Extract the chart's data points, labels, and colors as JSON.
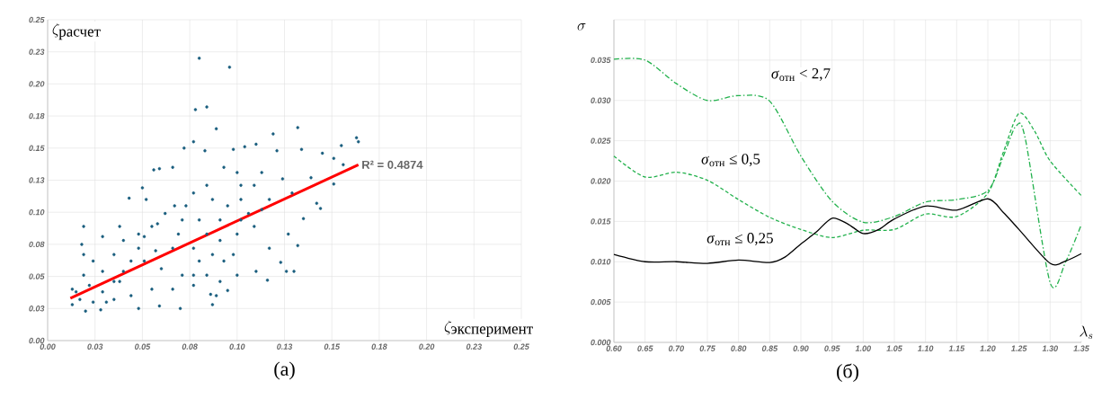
{
  "chart_data": [
    {
      "type": "scatter",
      "xlabel": "\\zeta_{\\mbox{эксперимент}}",
      "ylabel": "\\zeta_{\\mbox{расчет}}",
      "grid": true,
      "xlim": [
        0,
        0.25
      ],
      "ylim": [
        0,
        0.25
      ],
      "xticks": [
        {
          "value": 0,
          "label": "0.00"
        },
        {
          "value": 0.025,
          "label": "0.03"
        },
        {
          "value": 0.05,
          "label": "0.05"
        },
        {
          "value": 0.075,
          "label": "0.08"
        },
        {
          "value": 0.1,
          "label": "0.10"
        },
        {
          "value": 0.125,
          "label": "0.13"
        },
        {
          "value": 0.15,
          "label": "0.15"
        },
        {
          "value": 0.175,
          "label": "0.18"
        },
        {
          "value": 0.2,
          "label": "0.20"
        },
        {
          "value": 0.225,
          "label": "0.23"
        },
        {
          "value": 0.25,
          "label": "0.25"
        }
      ],
      "yticks": [
        {
          "value": 0,
          "label": "0.00"
        },
        {
          "value": 0.025,
          "label": "0.03"
        },
        {
          "value": 0.05,
          "label": "0.05"
        },
        {
          "value": 0.075,
          "label": "0.08"
        },
        {
          "value": 0.1,
          "label": "0.10"
        },
        {
          "value": 0.125,
          "label": "0.13"
        },
        {
          "value": 0.15,
          "label": "0.15"
        },
        {
          "value": 0.175,
          "label": "0.18"
        },
        {
          "value": 0.2,
          "label": "0.20"
        },
        {
          "value": 0.225,
          "label": "0.23"
        },
        {
          "value": 0.25,
          "label": "0.25"
        }
      ],
      "series": [
        {
          "type": "scatter",
          "marker": "circle",
          "color": "#1a5e7e",
          "x": [
            0.08,
            0.096,
            0.084,
            0.078,
            0.089,
            0.132,
            0.119,
            0.077,
            0.072,
            0.083,
            0.098,
            0.104,
            0.11,
            0.121,
            0.134,
            0.145,
            0.155,
            0.163,
            0.164,
            0.151,
            0.156,
            0.151,
            0.139,
            0.142,
            0.144,
            0.135,
            0.132,
            0.127,
            0.123,
            0.126,
            0.13,
            0.116,
            0.117,
            0.11,
            0.093,
            0.1,
            0.113,
            0.124,
            0.129,
            0.117,
            0.056,
            0.059,
            0.066,
            0.05,
            0.052,
            0.043,
            0.038,
            0.029,
            0.019,
            0.018,
            0.019,
            0.024,
            0.013,
            0.013,
            0.02,
            0.028,
            0.048,
            0.059,
            0.07,
            0.087,
            0.089,
            0.095,
            0.1,
            0.077,
            0.086,
            0.022,
            0.029,
            0.035,
            0.04,
            0.044,
            0.048,
            0.051,
            0.048,
            0.055,
            0.057,
            0.06,
            0.066,
            0.069,
            0.071,
            0.073,
            0.08,
            0.084,
            0.077,
            0.08,
            0.071,
            0.066,
            0.055,
            0.044,
            0.035,
            0.024,
            0.017,
            0.04,
            0.035,
            0.029,
            0.091,
            0.095,
            0.102,
            0.106,
            0.091,
            0.1,
            0.087,
            0.093,
            0.102,
            0.109,
            0.113,
            0.109,
            0.102,
            0.084,
            0.087,
            0.077,
            0.067,
            0.062,
            0.058,
            0.051,
            0.038,
            0.031,
            0.098,
            0.077,
            0.084,
            0.091,
            0.019,
            0.015
          ],
          "values": [
            0.22,
            0.213,
            0.182,
            0.18,
            0.165,
            0.166,
            0.161,
            0.155,
            0.15,
            0.148,
            0.149,
            0.151,
            0.153,
            0.148,
            0.149,
            0.146,
            0.152,
            0.158,
            0.155,
            0.142,
            0.137,
            0.122,
            0.127,
            0.107,
            0.103,
            0.095,
            0.074,
            0.083,
            0.061,
            0.054,
            0.054,
            0.047,
            0.072,
            0.054,
            0.135,
            0.131,
            0.131,
            0.126,
            0.115,
            0.11,
            0.133,
            0.134,
            0.135,
            0.119,
            0.11,
            0.111,
            0.089,
            0.081,
            0.089,
            0.075,
            0.067,
            0.062,
            0.04,
            0.028,
            0.023,
            0.024,
            0.025,
            0.027,
            0.025,
            0.028,
            0.035,
            0.039,
            0.051,
            0.043,
            0.036,
            0.043,
            0.038,
            0.046,
            0.054,
            0.062,
            0.072,
            0.081,
            0.083,
            0.089,
            0.07,
            0.056,
            0.072,
            0.083,
            0.094,
            0.105,
            0.094,
            0.083,
            0.072,
            0.062,
            0.051,
            0.04,
            0.04,
            0.035,
            0.032,
            0.03,
            0.032,
            0.078,
            0.067,
            0.054,
            0.094,
            0.105,
            0.11,
            0.099,
            0.078,
            0.083,
            0.067,
            0.062,
            0.094,
            0.089,
            0.102,
            0.121,
            0.121,
            0.121,
            0.11,
            0.115,
            0.105,
            0.099,
            0.091,
            0.062,
            0.046,
            0.03,
            0.067,
            0.051,
            0.051,
            0.046,
            0.051,
            0.038
          ]
        },
        {
          "type": "line",
          "color": "#ff0000",
          "x": [
            0.012,
            0.164
          ],
          "values": [
            0.033,
            0.137
          ]
        }
      ],
      "annotations": [
        {
          "text": "R² = 0.4874",
          "x": 0.164,
          "y": 0.137
        },
        "(a)"
      ]
    },
    {
      "type": "line",
      "xlabel": "\\lambda_{s}",
      "ylabel": "\\sigma",
      "grid": true,
      "xlim": [
        0.6,
        1.35
      ],
      "ylim": [
        0,
        0.04
      ],
      "xticks": [
        {
          "value": 0.6,
          "label": "0.60"
        },
        0.65,
        {
          "value": 0.7,
          "label": "0.70"
        },
        0.75,
        {
          "value": 0.8,
          "label": "0.80"
        },
        0.85,
        {
          "value": 0.9,
          "label": "0.90"
        },
        0.95,
        {
          "value": 1.0,
          "label": "1.00"
        },
        1.05,
        {
          "value": 1.1,
          "label": "1.10"
        },
        1.15,
        {
          "value": 1.2,
          "label": "1.20"
        },
        1.25,
        {
          "value": 1.3,
          "label": "1.30"
        },
        1.35
      ],
      "yticks": [
        {
          "value": 0,
          "label": "0.000"
        },
        0.005,
        {
          "value": 0.01,
          "label": "0.010"
        },
        0.015,
        {
          "value": 0.02,
          "label": "0.020"
        },
        0.025,
        {
          "value": 0.03,
          "label": "0.030"
        },
        0.035,
        {
          "value": 0.04,
          "label": null
        }
      ],
      "series": [
        {
          "name": "*σ*$_{отн}$ < 2,7",
          "color": "#22b14c",
          "line_style": "dashdot",
          "x": [
            0.6,
            0.65,
            0.7,
            0.75,
            0.8,
            0.85,
            0.9,
            0.95,
            1.0,
            1.05,
            1.1,
            1.15,
            1.2,
            1.225,
            1.245,
            1.26,
            1.3,
            1.325,
            1.35
          ],
          "values": [
            0.0351,
            0.035,
            0.0321,
            0.03,
            0.0306,
            0.0299,
            0.0231,
            0.0175,
            0.0149,
            0.0156,
            0.0174,
            0.0177,
            0.0188,
            0.0231,
            0.0268,
            0.0253,
            0.0074,
            0.01,
            0.0146
          ]
        },
        {
          "name": "*σ*$_{отн}$ ≤ 0,5",
          "color": "#22b14c",
          "line_style": "dashed",
          "x": [
            0.6,
            0.65,
            0.7,
            0.75,
            0.8,
            0.85,
            0.9,
            0.95,
            1.0,
            1.05,
            1.1,
            1.15,
            1.2,
            1.225,
            1.25,
            1.275,
            1.3,
            1.35
          ],
          "values": [
            0.0231,
            0.0205,
            0.0211,
            0.0201,
            0.0177,
            0.0155,
            0.014,
            0.013,
            0.0139,
            0.014,
            0.0159,
            0.0156,
            0.0185,
            0.0236,
            0.0284,
            0.0262,
            0.0225,
            0.0182
          ]
        },
        {
          "name": "*σ*$_{отн}$ ≤ 0,25",
          "color": "#000000",
          "line_style": "solid",
          "x": [
            0.6,
            0.65,
            0.7,
            0.75,
            0.8,
            0.85,
            0.875,
            0.9,
            0.925,
            0.95,
            0.975,
            1.0,
            1.025,
            1.05,
            1.1,
            1.15,
            1.2,
            1.225,
            1.25,
            1.3,
            1.325,
            1.35
          ],
          "values": [
            0.0109,
            0.01,
            0.01,
            0.0098,
            0.0102,
            0.0099,
            0.0106,
            0.0122,
            0.0137,
            0.0154,
            0.0147,
            0.0135,
            0.014,
            0.0153,
            0.0169,
            0.0164,
            0.0178,
            0.0161,
            0.014,
            0.0098,
            0.0101,
            0.011
          ]
        }
      ],
      "annotations": [
        "(б)"
      ]
    }
  ]
}
